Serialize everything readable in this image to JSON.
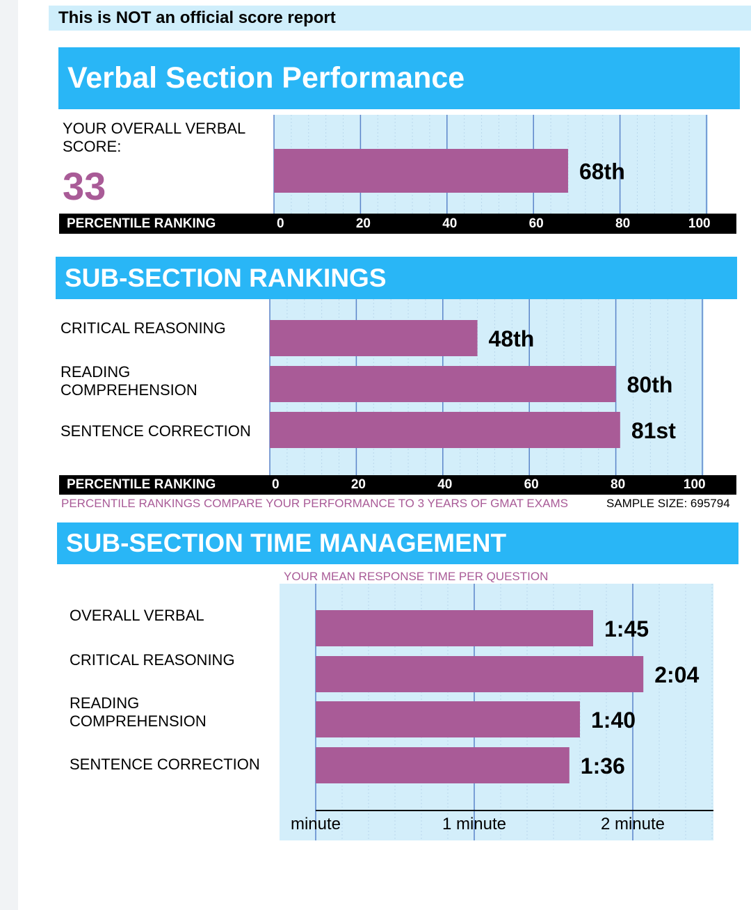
{
  "notice": "This is NOT an official score report",
  "verbal": {
    "title": "Verbal Section Performance",
    "score_label": "YOUR OVERALL VERBAL\nSCORE:",
    "score": "33",
    "axis_label": "PERCENTILE RANKING"
  },
  "rankings": {
    "title": "SUB-SECTION RANKINGS",
    "axis_label": "PERCENTILE RANKING",
    "footnote": "PERCENTILE RANKINGS COMPARE YOUR PERFORMANCE TO 3 YEARS OF GMAT EXAMS",
    "sample_size": "SAMPLE SIZE: 695794",
    "rows": [
      {
        "label": "CRITICAL REASONING"
      },
      {
        "label": "READING\nCOMPREHENSION"
      },
      {
        "label": "SENTENCE CORRECTION"
      }
    ]
  },
  "time": {
    "title": "SUB-SECTION TIME MANAGEMENT",
    "subtitle": "YOUR MEAN RESPONSE TIME PER QUESTION",
    "rows": [
      {
        "label": "OVERALL VERBAL"
      },
      {
        "label": "CRITICAL REASONING"
      },
      {
        "label": "READING\nCOMPREHENSION"
      },
      {
        "label": "SENTENCE CORRECTION"
      }
    ]
  },
  "colors": {
    "bar": "#a95b97",
    "plot_bg": "#d3eefa",
    "band": "#29b6f6",
    "gridline": "#5b84c9"
  },
  "chart_data": [
    {
      "type": "bar",
      "title": "Verbal Section Performance",
      "xlabel": "PERCENTILE RANKING",
      "categories": [
        "YOUR OVERALL VERBAL SCORE"
      ],
      "values": [
        68
      ],
      "value_labels": [
        "68th"
      ],
      "ticks": [
        "0",
        "20",
        "40",
        "60",
        "80",
        "100"
      ],
      "xlim": [
        0,
        100
      ]
    },
    {
      "type": "bar",
      "title": "SUB-SECTION RANKINGS",
      "xlabel": "PERCENTILE RANKING",
      "categories": [
        "CRITICAL REASONING",
        "READING COMPREHENSION",
        "SENTENCE CORRECTION"
      ],
      "values": [
        48,
        80,
        81
      ],
      "value_labels": [
        "48th",
        "80th",
        "81st"
      ],
      "ticks": [
        "0",
        "20",
        "40",
        "60",
        "80",
        "100"
      ],
      "xlim": [
        0,
        100
      ]
    },
    {
      "type": "bar",
      "title": "SUB-SECTION TIME MANAGEMENT",
      "xlabel": "YOUR MEAN RESPONSE TIME PER QUESTION",
      "categories": [
        "OVERALL VERBAL",
        "CRITICAL REASONING",
        "READING COMPREHENSION",
        "SENTENCE CORRECTION"
      ],
      "values": [
        105,
        124,
        100,
        96
      ],
      "units": "seconds",
      "value_labels": [
        "1:45",
        "2:04",
        "1:40",
        "1:36"
      ],
      "ticks": [
        "minute",
        "1 minute",
        "2 minute"
      ],
      "tick_values": [
        0,
        60,
        120
      ],
      "xlim": [
        0,
        150
      ]
    }
  ]
}
